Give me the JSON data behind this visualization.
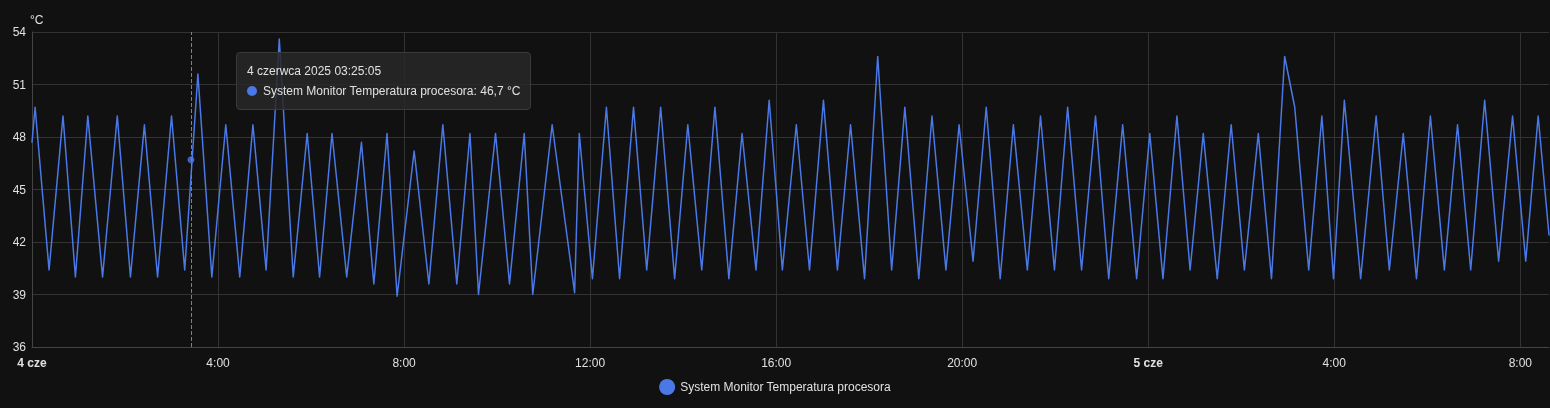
{
  "chart_data": {
    "type": "line",
    "ylabel": "°C",
    "x": [
      "2025-06-04T00:00",
      "2025-06-04T00:04",
      "2025-06-04T00:22",
      "2025-06-04T00:40",
      "2025-06-04T00:56",
      "2025-06-04T01:12",
      "2025-06-04T01:31",
      "2025-06-04T01:50",
      "2025-06-04T02:07",
      "2025-06-04T02:25",
      "2025-06-04T02:42",
      "2025-06-04T03:00",
      "2025-06-04T03:17",
      "2025-06-04T03:34",
      "2025-06-04T03:52",
      "2025-06-04T04:10",
      "2025-06-04T04:28",
      "2025-06-04T04:45",
      "2025-06-04T05:02",
      "2025-06-04T05:19",
      "2025-06-04T05:37",
      "2025-06-04T05:55",
      "2025-06-04T06:11",
      "2025-06-04T06:27",
      "2025-06-04T06:46",
      "2025-06-04T07:05",
      "2025-06-04T07:21",
      "2025-06-04T07:38",
      "2025-06-04T07:51",
      "2025-06-04T08:13",
      "2025-06-04T08:32",
      "2025-06-04T08:50",
      "2025-06-04T09:08",
      "2025-06-04T09:25",
      "2025-06-04T09:36",
      "2025-06-04T09:58",
      "2025-06-04T10:16",
      "2025-06-04T10:35",
      "2025-06-04T10:46",
      "2025-06-04T11:11",
      "2025-06-04T11:40",
      "2025-06-04T11:46",
      "2025-06-04T12:03",
      "2025-06-04T12:21",
      "2025-06-04T12:38",
      "2025-06-04T12:56",
      "2025-06-04T13:13",
      "2025-06-04T13:31",
      "2025-06-04T13:49",
      "2025-06-04T14:06",
      "2025-06-04T14:24",
      "2025-06-04T14:41",
      "2025-06-04T14:59",
      "2025-06-04T15:16",
      "2025-06-04T15:34",
      "2025-06-04T15:51",
      "2025-06-04T16:08",
      "2025-06-04T16:26",
      "2025-06-04T16:43",
      "2025-06-04T17:01",
      "2025-06-04T17:19",
      "2025-06-04T17:36",
      "2025-06-04T17:54",
      "2025-06-04T18:11",
      "2025-06-04T18:29",
      "2025-06-04T18:46",
      "2025-06-04T19:04",
      "2025-06-04T19:21",
      "2025-06-04T19:39",
      "2025-06-04T19:56",
      "2025-06-04T20:14",
      "2025-06-04T20:31",
      "2025-06-04T20:49",
      "2025-06-04T21:06",
      "2025-06-04T21:24",
      "2025-06-04T21:41",
      "2025-06-04T21:59",
      "2025-06-04T22:16",
      "2025-06-04T22:34",
      "2025-06-04T22:52",
      "2025-06-04T23:09",
      "2025-06-04T23:27",
      "2025-06-04T23:45",
      "2025-06-05T00:02",
      "2025-06-05T00:19",
      "2025-06-05T00:37",
      "2025-06-05T00:54",
      "2025-06-05T01:11",
      "2025-06-05T01:29",
      "2025-06-05T01:47",
      "2025-06-05T02:04",
      "2025-06-05T02:22",
      "2025-06-05T02:39",
      "2025-06-05T02:56",
      "2025-06-05T03:09",
      "2025-06-05T03:27",
      "2025-06-05T03:44",
      "2025-06-05T03:59",
      "2025-06-05T04:13",
      "2025-06-05T04:34",
      "2025-06-05T04:54",
      "2025-06-05T05:11",
      "2025-06-05T05:29",
      "2025-06-05T05:46",
      "2025-06-05T06:04",
      "2025-06-05T06:22",
      "2025-06-05T06:39",
      "2025-06-05T06:56",
      "2025-06-05T07:14",
      "2025-06-05T07:32",
      "2025-06-05T07:50",
      "2025-06-05T08:07",
      "2025-06-05T08:23",
      "2025-06-05T08:37"
    ],
    "series": [
      {
        "name": "System Monitor Temperatura procesora",
        "color": "#4a78e6",
        "values": [
          47.7,
          49.7,
          40.4,
          49.2,
          40.0,
          49.2,
          40.0,
          49.2,
          40.0,
          48.7,
          40.0,
          49.2,
          40.4,
          51.6,
          40.0,
          48.7,
          40.0,
          48.7,
          40.4,
          53.6,
          40.0,
          48.2,
          40.0,
          48.2,
          40.0,
          47.7,
          39.6,
          48.2,
          38.9,
          47.2,
          39.6,
          48.7,
          39.6,
          48.2,
          39.0,
          48.2,
          39.6,
          48.2,
          39.0,
          48.7,
          39.1,
          48.2,
          39.9,
          49.7,
          39.9,
          49.7,
          40.4,
          49.7,
          39.9,
          48.7,
          40.4,
          49.7,
          39.9,
          48.2,
          40.4,
          50.1,
          40.4,
          48.7,
          40.4,
          50.1,
          40.4,
          48.7,
          39.9,
          52.6,
          40.4,
          49.7,
          39.9,
          49.2,
          40.4,
          48.7,
          40.9,
          49.7,
          39.9,
          48.7,
          40.4,
          49.2,
          40.4,
          49.7,
          40.4,
          49.2,
          39.9,
          48.7,
          39.9,
          48.2,
          39.9,
          49.2,
          40.4,
          48.2,
          39.9,
          48.7,
          40.4,
          48.2,
          39.9,
          52.6,
          49.7,
          40.4,
          49.2,
          39.9,
          50.1,
          39.9,
          49.2,
          40.4,
          48.2,
          39.9,
          49.2,
          40.4,
          48.7,
          40.4,
          50.1,
          40.9,
          49.2,
          40.9,
          49.2,
          42.4
        ]
      },
      {
        "type": "scatter",
        "color": "#4a78e6",
        "x": [
          "2025-06-04T03:25:05"
        ],
        "values": [
          46.7
        ]
      }
    ],
    "xlim": [
      "2025-06-04T00:00",
      "2025-06-05T08:37"
    ],
    "xticks": [
      {
        "value": "2025-06-04T00:00",
        "label": "4 cze"
      },
      {
        "value": "2025-06-04T04:00",
        "label": "4:00"
      },
      {
        "value": "2025-06-04T08:00",
        "label": "8:00"
      },
      {
        "value": "2025-06-04T12:00",
        "label": "12:00"
      },
      {
        "value": "2025-06-04T16:00",
        "label": "16:00"
      },
      {
        "value": "2025-06-04T20:00",
        "label": "20:00"
      },
      {
        "value": "2025-06-05T00:00",
        "label": "5 cze"
      },
      {
        "value": "2025-06-05T04:00",
        "label": "4:00"
      },
      {
        "value": "2025-06-05T08:00",
        "label": "8:00"
      }
    ],
    "ylim": [
      36,
      54
    ],
    "yticks": [
      36,
      39,
      42,
      45,
      48,
      51,
      54
    ],
    "ref_lines": [
      {
        "axis": "x",
        "value": "2025-06-04T03:25:05",
        "color": "#03a9f4",
        "line_style": "dashed"
      }
    ],
    "annotations": [
      "4 czerwca 2025 03:25:05",
      "System Monitor Temperatura procesora: 46,7 °C"
    ],
    "grid": true,
    "legend": "bottom",
    "marker": "none",
    "line_style": "solid"
  }
}
